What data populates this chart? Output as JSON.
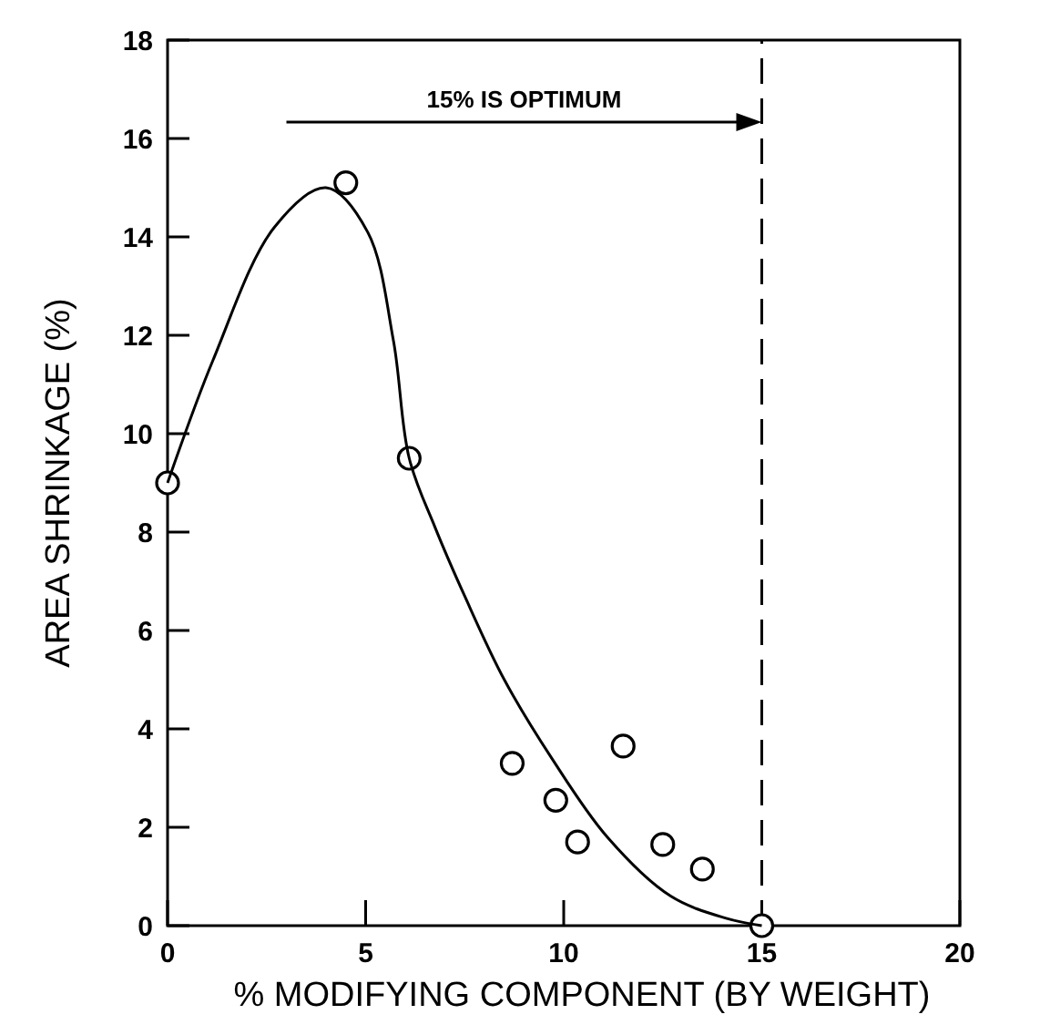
{
  "chart_data": {
    "type": "scatter",
    "xlabel": "% MODIFYING COMPONENT (BY WEIGHT)",
    "ylabel": "AREA   SHRINKAGE (%)",
    "xlim": [
      0,
      20
    ],
    "ylim": [
      0,
      18
    ],
    "xticks": [
      0,
      5,
      10,
      15,
      20
    ],
    "yticks": [
      0,
      2,
      4,
      6,
      8,
      10,
      12,
      14,
      16,
      18
    ],
    "grid": false,
    "series": [
      {
        "marker": "circle",
        "color": "#000000",
        "x": [
          0,
          4.5,
          6.1,
          8.7,
          9.8,
          10.35,
          11.5,
          12.5,
          13.5,
          15
        ],
        "values": [
          9,
          15.1,
          9.5,
          3.3,
          2.55,
          1.7,
          3.65,
          1.65,
          1.15,
          0
        ]
      },
      {
        "type": "line",
        "marker": "none",
        "color": "#000000",
        "line_style": "solid",
        "x": [
          0,
          1.15,
          2.7,
          4,
          5.05,
          5.7,
          6.1,
          6.75,
          7.5,
          8.5,
          9.7,
          11.1,
          12.7,
          14.1,
          15
        ],
        "values": [
          9,
          11.5,
          14.2,
          15,
          14.1,
          11.9,
          9.5,
          8.1,
          6.7,
          5.0,
          3.4,
          1.8,
          0.6,
          0.15,
          0
        ]
      }
    ],
    "ref_lines": [
      {
        "axis": "x",
        "value": 15,
        "line_style": "dashed",
        "color": "#000000"
      }
    ],
    "annotations": [
      "15% IS OPTIMUM"
    ]
  }
}
